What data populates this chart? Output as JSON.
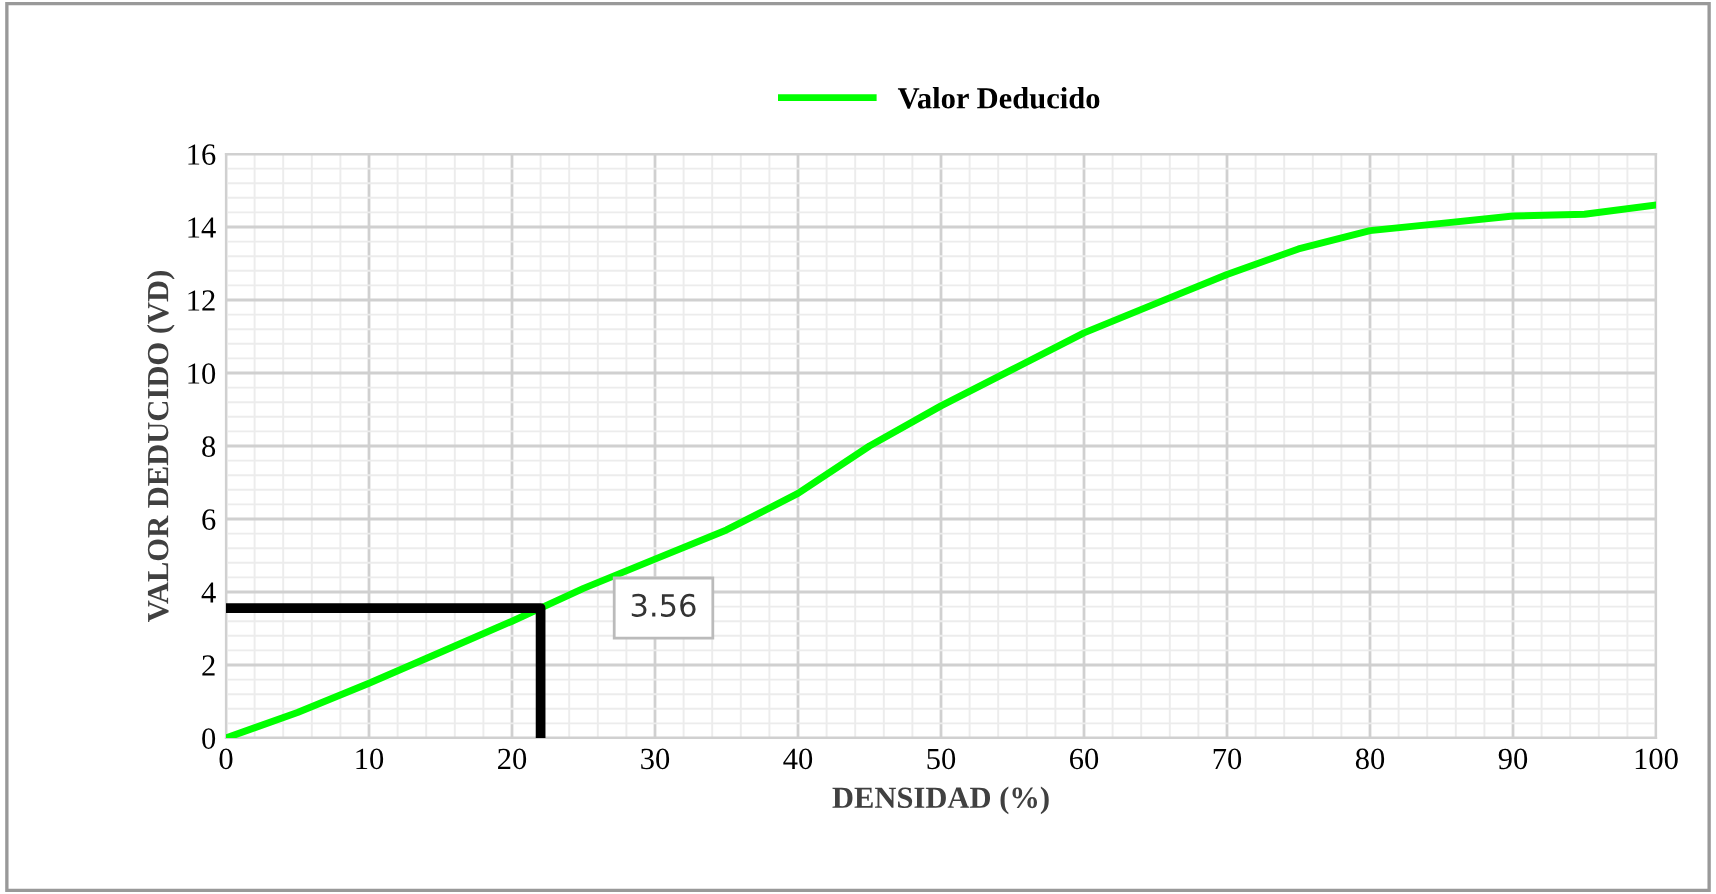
{
  "chart_data": {
    "type": "line",
    "xlabel": "DENSIDAD (%)",
    "ylabel": "VALOR DEDUCIDO (VD)",
    "series": [
      {
        "name": "Valor Deducido",
        "color": "#00ff00",
        "x": [
          0,
          5,
          10,
          15,
          20,
          22,
          25,
          30,
          35,
          40,
          45,
          50,
          55,
          60,
          65,
          70,
          75,
          80,
          85,
          90,
          95,
          100
        ],
        "values": [
          0,
          0.7,
          1.5,
          2.35,
          3.2,
          3.56,
          4.1,
          4.9,
          5.7,
          6.7,
          8.0,
          9.1,
          10.1,
          11.1,
          11.9,
          12.7,
          13.4,
          13.9,
          14.1,
          14.3,
          14.35,
          14.6
        ]
      },
      {
        "color": "#000000",
        "x": [
          0,
          22,
          22
        ],
        "values": [
          3.56,
          3.56,
          0
        ]
      }
    ],
    "annotations": [
      {
        "text": "3.56",
        "x": 22,
        "y": 3.56
      }
    ],
    "xlim": [
      0,
      100
    ],
    "xticks": [
      0,
      10,
      20,
      30,
      40,
      50,
      60,
      70,
      80,
      90,
      100
    ],
    "ylim": [
      0,
      16
    ],
    "yticks": [
      0,
      2,
      4,
      6,
      8,
      10,
      12,
      14,
      16
    ],
    "grid": true,
    "legend": "top",
    "marker": "none",
    "line_style": "solid"
  }
}
